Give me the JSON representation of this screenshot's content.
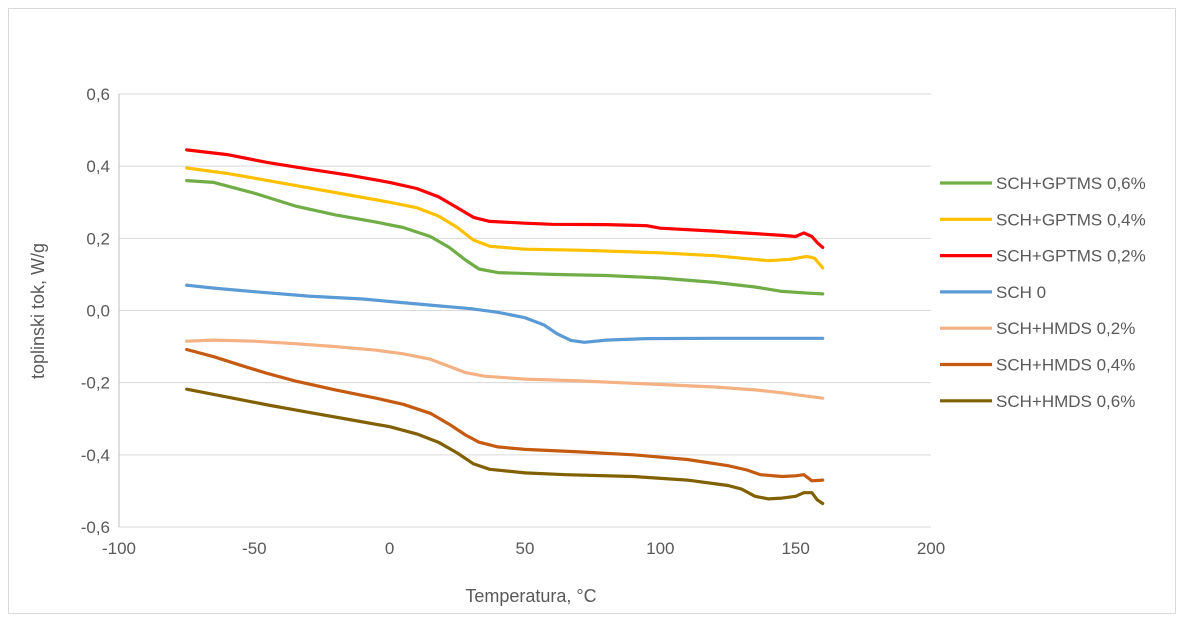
{
  "chart_data": {
    "type": "line",
    "title": "",
    "xlabel": "Temperatura, °C",
    "ylabel": "toplinski tok, W/g",
    "xlim": [
      -100,
      200
    ],
    "ylim": [
      -0.6,
      0.6
    ],
    "x_ticks": [
      -100,
      -50,
      0,
      50,
      100,
      150,
      200
    ],
    "x_tick_labels": [
      "-100",
      "-50",
      "0",
      "50",
      "100",
      "150",
      "200"
    ],
    "y_ticks": [
      -0.6,
      -0.4,
      -0.2,
      0.0,
      0.2,
      0.4,
      0.6
    ],
    "y_tick_labels": [
      "-0,6",
      "-0,4",
      "-0,2",
      "0,0",
      "0,2",
      "0,4",
      "0,6"
    ],
    "grid": "horizontal",
    "legend_position": "right",
    "series": [
      {
        "name": "SCH+GPTMS 0,6%",
        "color": "#70AD47",
        "points": [
          [
            -75,
            0.36
          ],
          [
            -65,
            0.355
          ],
          [
            -50,
            0.325
          ],
          [
            -35,
            0.29
          ],
          [
            -20,
            0.265
          ],
          [
            -5,
            0.245
          ],
          [
            5,
            0.23
          ],
          [
            15,
            0.205
          ],
          [
            22,
            0.175
          ],
          [
            28,
            0.14
          ],
          [
            33,
            0.115
          ],
          [
            40,
            0.105
          ],
          [
            60,
            0.1
          ],
          [
            80,
            0.097
          ],
          [
            100,
            0.09
          ],
          [
            120,
            0.078
          ],
          [
            135,
            0.065
          ],
          [
            145,
            0.053
          ],
          [
            155,
            0.048
          ],
          [
            160,
            0.046
          ]
        ]
      },
      {
        "name": "SCH+GPTMS 0,4%",
        "color": "#FFC000",
        "points": [
          [
            -75,
            0.395
          ],
          [
            -60,
            0.38
          ],
          [
            -45,
            0.36
          ],
          [
            -30,
            0.34
          ],
          [
            -15,
            0.32
          ],
          [
            0,
            0.3
          ],
          [
            10,
            0.285
          ],
          [
            18,
            0.262
          ],
          [
            25,
            0.23
          ],
          [
            31,
            0.195
          ],
          [
            37,
            0.178
          ],
          [
            50,
            0.17
          ],
          [
            70,
            0.167
          ],
          [
            100,
            0.16
          ],
          [
            120,
            0.152
          ],
          [
            130,
            0.145
          ],
          [
            140,
            0.138
          ],
          [
            148,
            0.142
          ],
          [
            154,
            0.15
          ],
          [
            157,
            0.145
          ],
          [
            160,
            0.118
          ]
        ]
      },
      {
        "name": "SCH+GPTMS 0,2%",
        "color": "#FF0000",
        "points": [
          [
            -75,
            0.445
          ],
          [
            -60,
            0.432
          ],
          [
            -45,
            0.41
          ],
          [
            -30,
            0.392
          ],
          [
            -15,
            0.375
          ],
          [
            0,
            0.355
          ],
          [
            10,
            0.338
          ],
          [
            18,
            0.315
          ],
          [
            25,
            0.285
          ],
          [
            31,
            0.258
          ],
          [
            37,
            0.247
          ],
          [
            50,
            0.242
          ],
          [
            60,
            0.239
          ],
          [
            80,
            0.238
          ],
          [
            95,
            0.235
          ],
          [
            100,
            0.228
          ],
          [
            120,
            0.22
          ],
          [
            135,
            0.213
          ],
          [
            145,
            0.208
          ],
          [
            150,
            0.205
          ],
          [
            153,
            0.215
          ],
          [
            156,
            0.205
          ],
          [
            158,
            0.188
          ],
          [
            160,
            0.175
          ]
        ]
      },
      {
        "name": "SCH 0",
        "color": "#5B9BD5",
        "points": [
          [
            -75,
            0.07
          ],
          [
            -65,
            0.062
          ],
          [
            -50,
            0.052
          ],
          [
            -30,
            0.04
          ],
          [
            -10,
            0.032
          ],
          [
            0,
            0.025
          ],
          [
            15,
            0.015
          ],
          [
            30,
            0.005
          ],
          [
            40,
            -0.005
          ],
          [
            50,
            -0.02
          ],
          [
            57,
            -0.04
          ],
          [
            62,
            -0.065
          ],
          [
            67,
            -0.083
          ],
          [
            72,
            -0.088
          ],
          [
            80,
            -0.082
          ],
          [
            95,
            -0.078
          ],
          [
            120,
            -0.077
          ],
          [
            140,
            -0.077
          ],
          [
            160,
            -0.077
          ]
        ]
      },
      {
        "name": "SCH+HMDS 0,2%",
        "color": "#F4B183",
        "points": [
          [
            -75,
            -0.085
          ],
          [
            -65,
            -0.082
          ],
          [
            -50,
            -0.085
          ],
          [
            -35,
            -0.092
          ],
          [
            -20,
            -0.1
          ],
          [
            -5,
            -0.11
          ],
          [
            5,
            -0.12
          ],
          [
            15,
            -0.135
          ],
          [
            22,
            -0.155
          ],
          [
            28,
            -0.172
          ],
          [
            35,
            -0.182
          ],
          [
            50,
            -0.19
          ],
          [
            70,
            -0.195
          ],
          [
            100,
            -0.205
          ],
          [
            120,
            -0.212
          ],
          [
            135,
            -0.22
          ],
          [
            145,
            -0.228
          ],
          [
            155,
            -0.238
          ],
          [
            160,
            -0.243
          ]
        ]
      },
      {
        "name": "SCH+HMDS 0,4%",
        "color": "#C55A11",
        "points": [
          [
            -75,
            -0.108
          ],
          [
            -65,
            -0.128
          ],
          [
            -55,
            -0.152
          ],
          [
            -45,
            -0.175
          ],
          [
            -35,
            -0.195
          ],
          [
            -20,
            -0.22
          ],
          [
            -5,
            -0.243
          ],
          [
            5,
            -0.26
          ],
          [
            15,
            -0.285
          ],
          [
            22,
            -0.315
          ],
          [
            28,
            -0.345
          ],
          [
            33,
            -0.365
          ],
          [
            40,
            -0.378
          ],
          [
            50,
            -0.385
          ],
          [
            70,
            -0.392
          ],
          [
            90,
            -0.4
          ],
          [
            110,
            -0.413
          ],
          [
            125,
            -0.43
          ],
          [
            132,
            -0.442
          ],
          [
            137,
            -0.455
          ],
          [
            145,
            -0.46
          ],
          [
            150,
            -0.458
          ],
          [
            153,
            -0.455
          ],
          [
            156,
            -0.472
          ],
          [
            160,
            -0.47
          ]
        ]
      },
      {
        "name": "SCH+HMDS 0,6%",
        "color": "#806000",
        "points": [
          [
            -75,
            -0.218
          ],
          [
            -60,
            -0.24
          ],
          [
            -45,
            -0.262
          ],
          [
            -30,
            -0.282
          ],
          [
            -15,
            -0.302
          ],
          [
            0,
            -0.322
          ],
          [
            10,
            -0.342
          ],
          [
            18,
            -0.365
          ],
          [
            25,
            -0.395
          ],
          [
            31,
            -0.425
          ],
          [
            37,
            -0.44
          ],
          [
            50,
            -0.45
          ],
          [
            65,
            -0.455
          ],
          [
            90,
            -0.46
          ],
          [
            110,
            -0.47
          ],
          [
            125,
            -0.485
          ],
          [
            130,
            -0.495
          ],
          [
            135,
            -0.515
          ],
          [
            140,
            -0.522
          ],
          [
            145,
            -0.52
          ],
          [
            150,
            -0.515
          ],
          [
            153,
            -0.505
          ],
          [
            156,
            -0.505
          ],
          [
            158,
            -0.525
          ],
          [
            160,
            -0.535
          ]
        ]
      }
    ]
  }
}
